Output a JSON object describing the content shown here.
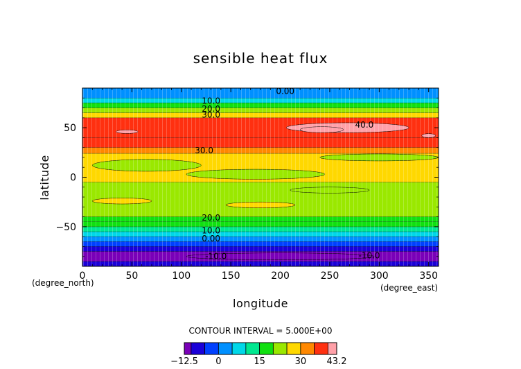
{
  "chart_data": {
    "type": "heatmap",
    "title": "sensible heat flux",
    "xlabel": "longitude",
    "ylabel": "latitude",
    "x_unit": "(degree_east)",
    "y_unit": "(degree_north)",
    "xlim": [
      0,
      360
    ],
    "ylim": [
      -90,
      90
    ],
    "x_ticks": [
      0,
      50,
      100,
      150,
      200,
      250,
      300,
      350
    ],
    "y_ticks": [
      -50,
      0,
      50
    ],
    "contour_interval_text": "CONTOUR INTERVAL = 5.000E+00",
    "colorbar": {
      "min": -12.5,
      "max": 43.2,
      "tick_labels": [
        "−12.5",
        "0",
        "15",
        "30",
        "43.2"
      ],
      "levels": [
        -12.5,
        -10,
        -5,
        0,
        5,
        10,
        15,
        20,
        25,
        30,
        35,
        40,
        43.2
      ],
      "colors": [
        "#7a00b8",
        "#1a00d8",
        "#0040ff",
        "#0090ff",
        "#00d8e8",
        "#00e890",
        "#10e010",
        "#9ae800",
        "#ffd800",
        "#ff8800",
        "#ff3010",
        "#ffa0a8"
      ]
    },
    "latitude_bands": [
      {
        "lat": [
          80,
          90
        ],
        "value": 2
      },
      {
        "lat": [
          75,
          80
        ],
        "value": 9
      },
      {
        "lat": [
          70,
          75
        ],
        "value": 15
      },
      {
        "lat": [
          65,
          70
        ],
        "value": 21
      },
      {
        "lat": [
          60,
          65
        ],
        "value": 28
      },
      {
        "lat": [
          40,
          60
        ],
        "value": 37
      },
      {
        "lat": [
          30,
          40
        ],
        "value": 36
      },
      {
        "lat": [
          24,
          30
        ],
        "value": 33
      },
      {
        "lat": [
          -5,
          24
        ],
        "value": 28
      },
      {
        "lat": [
          -40,
          -5
        ],
        "value": 22
      },
      {
        "lat": [
          -45,
          -40
        ],
        "value": 19
      },
      {
        "lat": [
          -50,
          -45
        ],
        "value": 15
      },
      {
        "lat": [
          -55,
          -50
        ],
        "value": 11
      },
      {
        "lat": [
          -60,
          -55
        ],
        "value": 8
      },
      {
        "lat": [
          -65,
          -60
        ],
        "value": 3
      },
      {
        "lat": [
          -70,
          -65
        ],
        "value": -2
      },
      {
        "lat": [
          -75,
          -70
        ],
        "value": -6
      },
      {
        "lat": [
          -85,
          -75
        ],
        "value": -11
      },
      {
        "lat": [
          -90,
          -85
        ],
        "value": -7
      }
    ],
    "contour_labels": [
      {
        "text": "0.00",
        "lon": 205,
        "lat": 87
      },
      {
        "text": "10.0",
        "lon": 130,
        "lat": 77
      },
      {
        "text": "20.0",
        "lon": 130,
        "lat": 69
      },
      {
        "text": "30.0",
        "lon": 130,
        "lat": 63
      },
      {
        "text": "40.0",
        "lon": 285,
        "lat": 53
      },
      {
        "text": "30.0",
        "lon": 123,
        "lat": 27
      },
      {
        "text": "20.0",
        "lon": 130,
        "lat": -41
      },
      {
        "text": "10.0",
        "lon": 130,
        "lat": -54
      },
      {
        "text": "0.00",
        "lon": 130,
        "lat": -62
      },
      {
        "text": "-10.0",
        "lon": 135,
        "lat": -80
      },
      {
        "text": "-10.0",
        "lon": 290,
        "lat": -79
      }
    ]
  }
}
